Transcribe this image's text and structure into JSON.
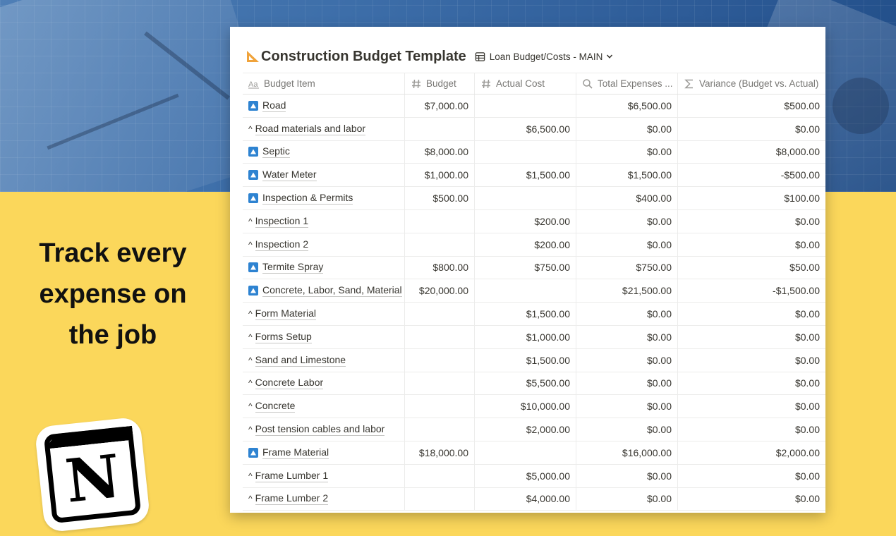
{
  "tagline": {
    "lines": [
      "Track every",
      "expense on",
      "the job"
    ]
  },
  "logo": {
    "letter": "N"
  },
  "page": {
    "title": "Construction Budget Template",
    "title_icon": "triangle-ruler-icon",
    "view_label": "Loan Budget/Costs - MAIN"
  },
  "table": {
    "columns": [
      {
        "label": "Budget Item",
        "icon": "title-property-icon"
      },
      {
        "label": "Budget",
        "icon": "number-property-icon"
      },
      {
        "label": "Actual Cost",
        "icon": "number-property-icon"
      },
      {
        "label": "Total Expenses ...",
        "icon": "rollup-search-icon"
      },
      {
        "label": "Variance (Budget vs. Actual)",
        "icon": "formula-sigma-icon"
      }
    ],
    "rows": [
      {
        "name": "Road",
        "parent": true,
        "budget": "$7,000.00",
        "actual": "",
        "total": "$6,500.00",
        "variance": "$500.00"
      },
      {
        "name": "Road materials and labor",
        "parent": false,
        "budget": "",
        "actual": "$6,500.00",
        "total": "$0.00",
        "variance": "$0.00"
      },
      {
        "name": "Septic",
        "parent": true,
        "budget": "$8,000.00",
        "actual": "",
        "total": "$0.00",
        "variance": "$8,000.00"
      },
      {
        "name": "Water Meter",
        "parent": true,
        "budget": "$1,000.00",
        "actual": "$1,500.00",
        "total": "$1,500.00",
        "variance": "-$500.00"
      },
      {
        "name": "Inspection & Permits",
        "parent": true,
        "budget": "$500.00",
        "actual": "",
        "total": "$400.00",
        "variance": "$100.00"
      },
      {
        "name": "Inspection 1",
        "parent": false,
        "budget": "",
        "actual": "$200.00",
        "total": "$0.00",
        "variance": "$0.00"
      },
      {
        "name": "Inspection 2",
        "parent": false,
        "budget": "",
        "actual": "$200.00",
        "total": "$0.00",
        "variance": "$0.00"
      },
      {
        "name": "Termite Spray",
        "parent": true,
        "budget": "$800.00",
        "actual": "$750.00",
        "total": "$750.00",
        "variance": "$50.00"
      },
      {
        "name": "Concrete, Labor, Sand, Material",
        "parent": true,
        "budget": "$20,000.00",
        "actual": "",
        "total": "$21,500.00",
        "variance": "-$1,500.00"
      },
      {
        "name": "Form Material",
        "parent": false,
        "budget": "",
        "actual": "$1,500.00",
        "total": "$0.00",
        "variance": "$0.00"
      },
      {
        "name": "Forms Setup",
        "parent": false,
        "budget": "",
        "actual": "$1,000.00",
        "total": "$0.00",
        "variance": "$0.00"
      },
      {
        "name": "Sand and Limestone",
        "parent": false,
        "budget": "",
        "actual": "$1,500.00",
        "total": "$0.00",
        "variance": "$0.00"
      },
      {
        "name": "Concrete Labor",
        "parent": false,
        "budget": "",
        "actual": "$5,500.00",
        "total": "$0.00",
        "variance": "$0.00"
      },
      {
        "name": "Concrete",
        "parent": false,
        "budget": "",
        "actual": "$10,000.00",
        "total": "$0.00",
        "variance": "$0.00"
      },
      {
        "name": "Post tension cables and labor",
        "parent": false,
        "budget": "",
        "actual": "$2,000.00",
        "total": "$0.00",
        "variance": "$0.00"
      },
      {
        "name": "Frame Material",
        "parent": true,
        "budget": "$18,000.00",
        "actual": "",
        "total": "$16,000.00",
        "variance": "$2,000.00"
      },
      {
        "name": "Frame Lumber 1",
        "parent": false,
        "budget": "",
        "actual": "$5,000.00",
        "total": "$0.00",
        "variance": "$0.00"
      },
      {
        "name": "Frame Lumber 2",
        "parent": false,
        "budget": "",
        "actual": "$4,000.00",
        "total": "$0.00",
        "variance": "$0.00"
      }
    ]
  },
  "colors": {
    "background_yellow": "#fbd75b",
    "background_blue": "#3d6ea9",
    "parent_icon_blue": "#2e83d1",
    "title_icon_orange": "#f0a33b",
    "text": "#37352f",
    "muted_text": "#787774"
  }
}
